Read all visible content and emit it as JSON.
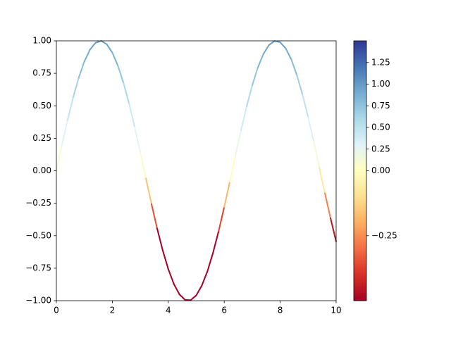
{
  "chart_data": {
    "type": "colored_line",
    "x": [
      0,
      0.2,
      0.4,
      0.6,
      0.8,
      1.0,
      1.2,
      1.4,
      1.6,
      1.8,
      2.0,
      2.2,
      2.4,
      2.6,
      2.8,
      3.0,
      3.2,
      3.4,
      3.6,
      3.8,
      4.0,
      4.2,
      4.4,
      4.6,
      4.8,
      5.0,
      5.2,
      5.4,
      5.6,
      5.8,
      6.0,
      6.2,
      6.4,
      6.6,
      6.8,
      7.0,
      7.2,
      7.4,
      7.6,
      7.8,
      8.0,
      8.2,
      8.4,
      8.6,
      8.8,
      9.0,
      9.2,
      9.4,
      9.6,
      9.8,
      10.0
    ],
    "values": [
      0,
      0.199,
      0.389,
      0.565,
      0.717,
      0.841,
      0.932,
      0.985,
      1.0,
      0.974,
      0.909,
      0.808,
      0.675,
      0.516,
      0.335,
      0.141,
      -0.058,
      -0.256,
      -0.443,
      -0.612,
      -0.757,
      -0.872,
      -0.952,
      -0.994,
      -0.996,
      -0.959,
      -0.883,
      -0.773,
      -0.631,
      -0.465,
      -0.279,
      -0.083,
      0.117,
      0.312,
      0.494,
      0.657,
      0.794,
      0.899,
      0.968,
      0.999,
      0.989,
      0.941,
      0.855,
      0.734,
      0.585,
      0.412,
      0.223,
      0.025,
      -0.174,
      -0.366,
      -0.544
    ],
    "xlim": [
      0,
      10
    ],
    "xticks": [
      0,
      2,
      4,
      6,
      8,
      10
    ],
    "ylim": [
      -1,
      1
    ],
    "yticks": [
      {
        "value": -1,
        "label": "−1.00"
      },
      {
        "value": -0.75,
        "label": "−0.75"
      },
      {
        "value": -0.5,
        "label": "−0.50"
      },
      {
        "value": -0.25,
        "label": "−0.25"
      },
      {
        "value": 0,
        "label": "0.00"
      },
      {
        "value": 0.25,
        "label": "0.25"
      },
      {
        "value": 0.5,
        "label": "0.50"
      },
      {
        "value": 0.75,
        "label": "0.75"
      },
      {
        "value": 1,
        "label": "1.00"
      }
    ],
    "colormap": [
      "#a50026",
      "#d73027",
      "#f46d43",
      "#fdae61",
      "#fee090",
      "#ffffbf",
      "#e0f3f8",
      "#abd9e9",
      "#74add1",
      "#4575b4",
      "#313695"
    ],
    "colorbar": {
      "lim": [
        -0.5,
        1.5
      ],
      "center": 0,
      "ticks": [
        {
          "value": -0.25,
          "label": "−0.25"
        },
        {
          "value": 0,
          "label": "0.00"
        },
        {
          "value": 0.25,
          "label": "0.25"
        },
        {
          "value": 0.5,
          "label": "0.50"
        },
        {
          "value": 0.75,
          "label": "0.75"
        },
        {
          "value": 1,
          "label": "1.00"
        },
        {
          "value": 1.25,
          "label": "1.25"
        }
      ]
    }
  }
}
